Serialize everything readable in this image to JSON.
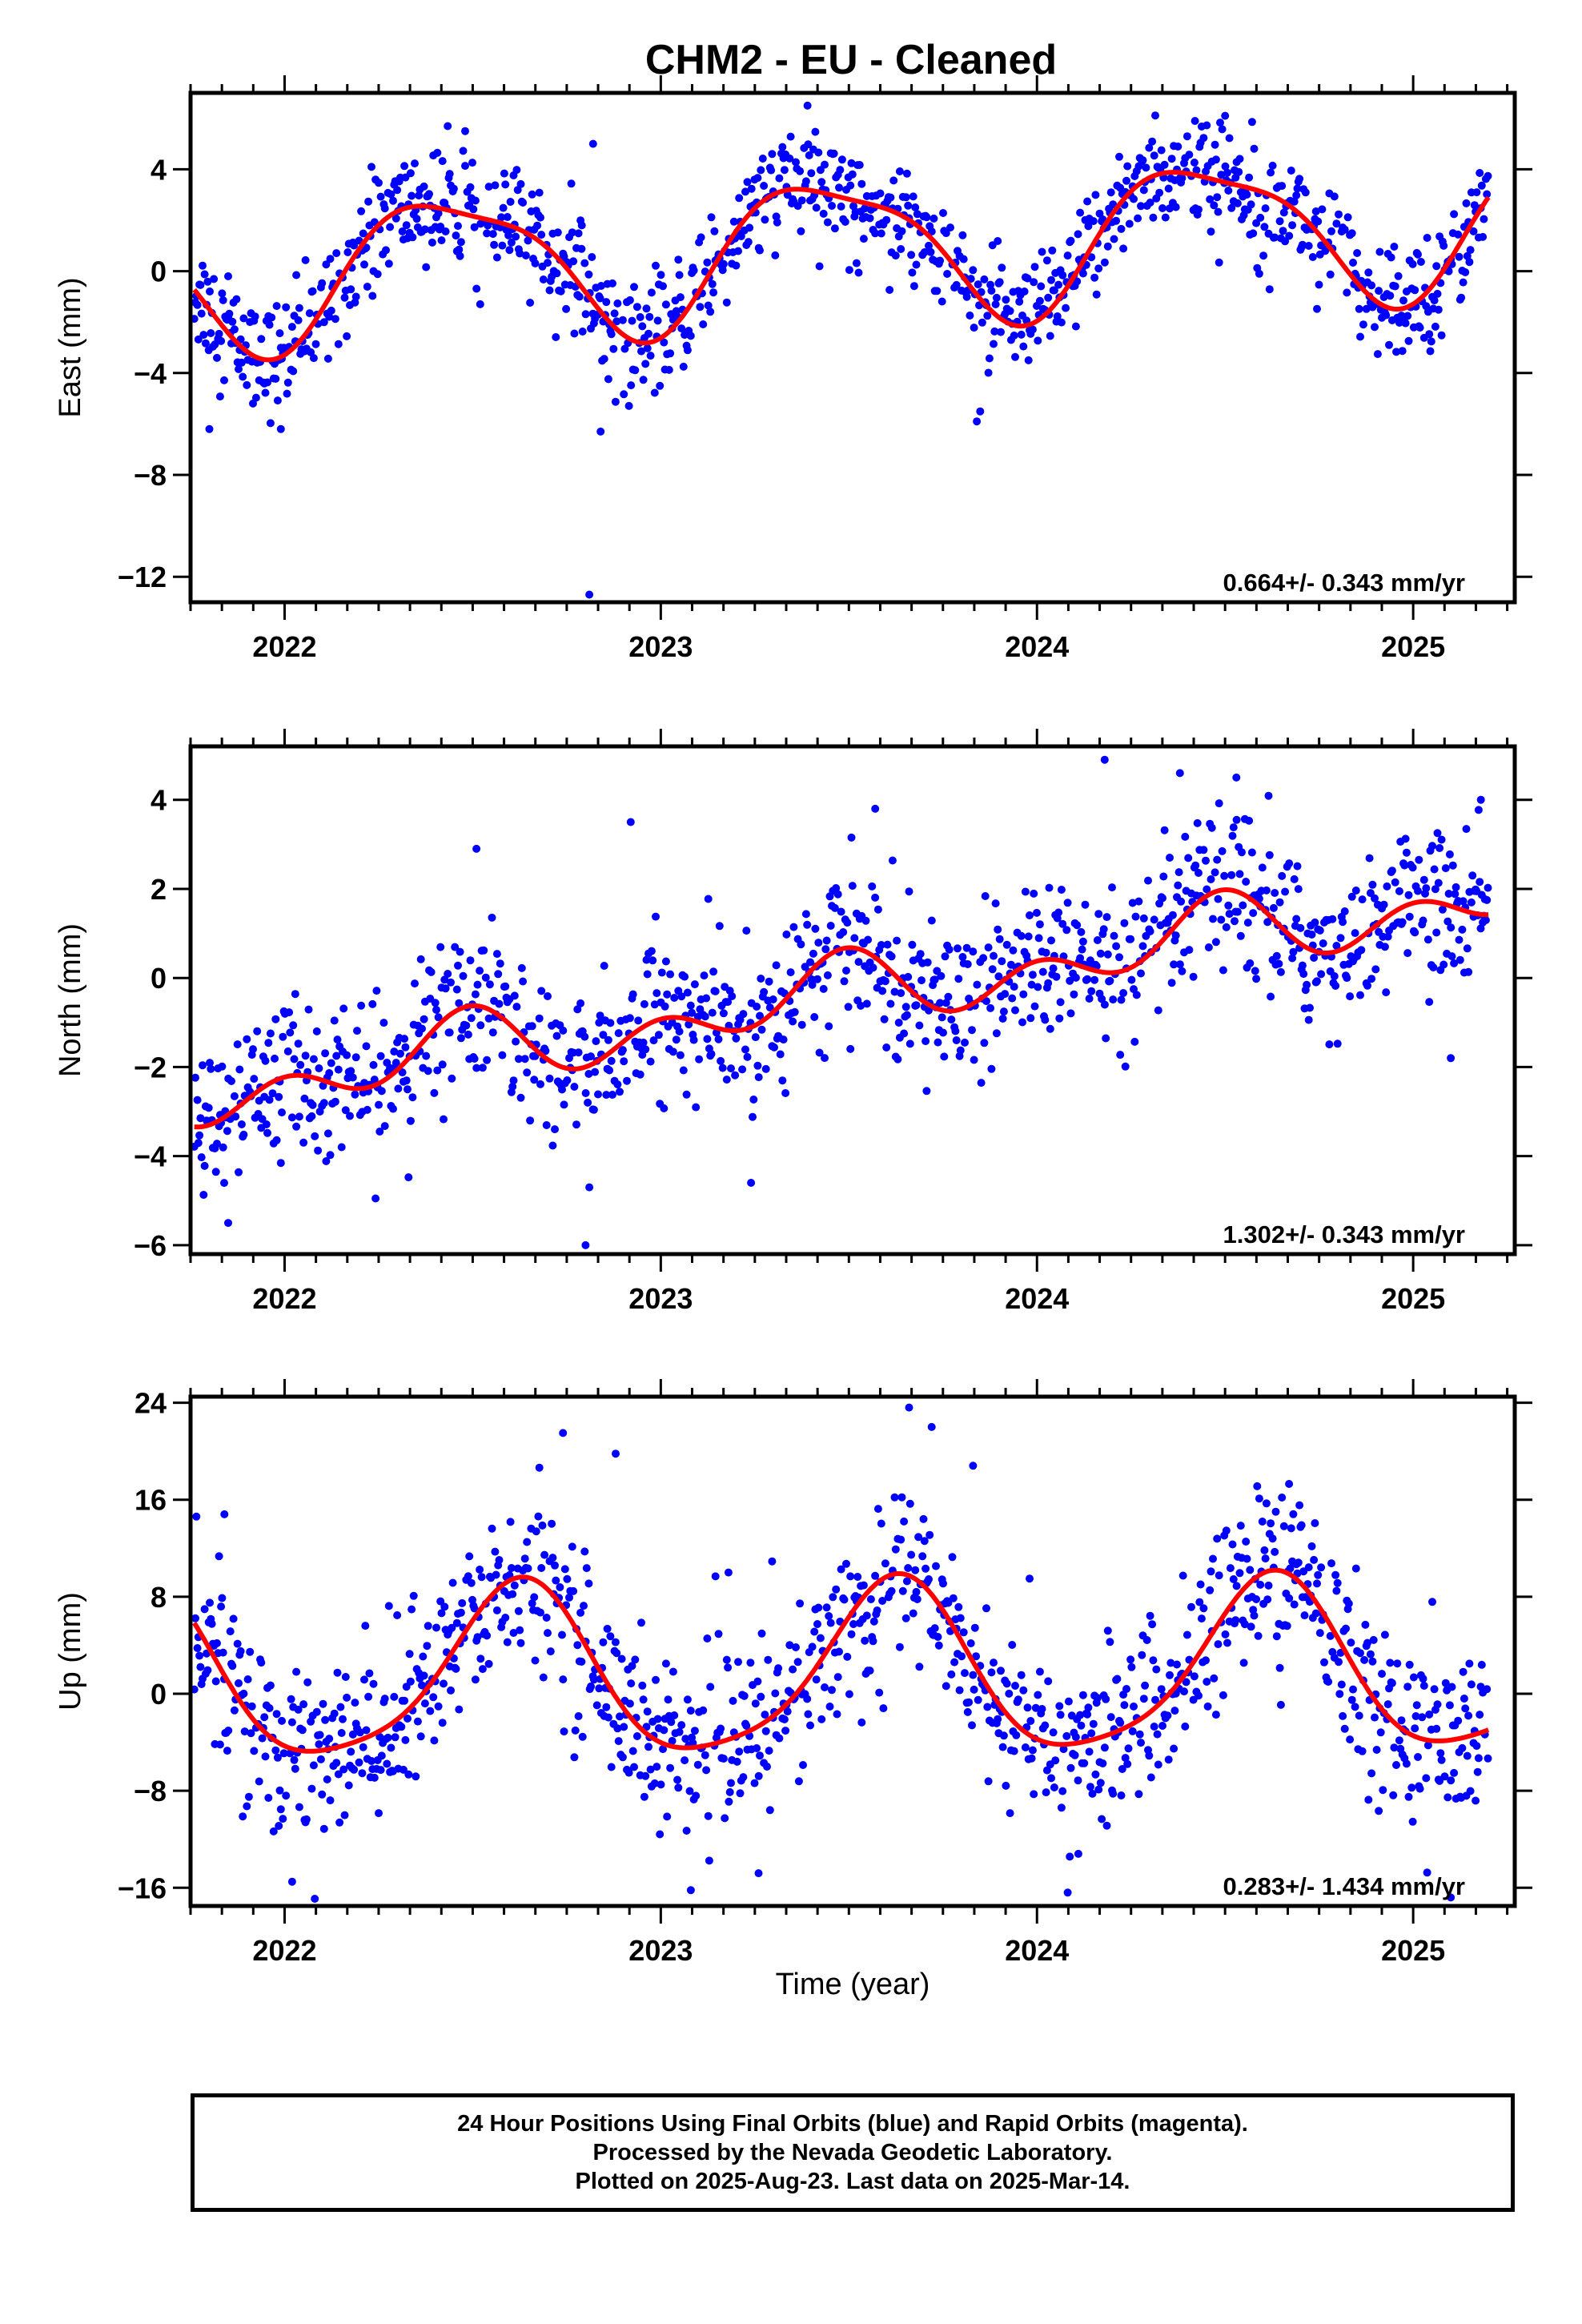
{
  "chart_data": {
    "title": "CHM2  - EU - Cleaned",
    "type": "scatter",
    "xlabel": "Time (year)",
    "xlim": [
      2021.75,
      2025.27
    ],
    "x_ticks": [
      "2022",
      "2023",
      "2024",
      "2025"
    ],
    "series_colors": {
      "final_orbits": "#0000ff",
      "rapid_orbits": "#ff00ff",
      "model_fit": "#ff0000"
    },
    "panels": [
      {
        "ylabel": "East (mm)",
        "ylim": [
          -13,
          7
        ],
        "y_ticks": [
          "−12",
          "−8",
          "−4",
          "0",
          "4"
        ],
        "rate_label": "0.664+/- 0.343 mm/yr",
        "model": {
          "offset": -0.05,
          "rate": 0.664,
          "annual_amp": 2.75,
          "annual_peak": 2022.44,
          "semi_amp": 0.7,
          "semi_peak": 2022.23
        },
        "scatter": 1.1,
        "x_range": [
          2021.76,
          2025.2
        ],
        "outliers": [
          {
            "x": 2022.81,
            "y": -12.7
          },
          {
            "x": 2022.82,
            "y": 5.0
          },
          {
            "x": 2023.39,
            "y": 6.5
          },
          {
            "x": 2022.48,
            "y": 5.5
          },
          {
            "x": 2024.42,
            "y": 5.9
          },
          {
            "x": 2024.5,
            "y": 6.1
          },
          {
            "x": 2021.85,
            "y": -0.2
          },
          {
            "x": 2021.8,
            "y": -6.2
          },
          {
            "x": 2021.99,
            "y": -6.2
          },
          {
            "x": 2022.84,
            "y": -6.3
          },
          {
            "x": 2023.84,
            "y": -5.9
          },
          {
            "x": 2022.52,
            "y": -1.3
          },
          {
            "x": 2022.79,
            "y": 1.8
          }
        ]
      },
      {
        "ylabel": "North (mm)",
        "ylim": [
          -6.2,
          5.2
        ],
        "y_ticks": [
          "−6",
          "−4",
          "−2",
          "0",
          "2",
          "4"
        ],
        "rate_label": "1.302+/- 0.343 mm/yr",
        "model": {
          "offset": -2.3,
          "rate": 1.302,
          "annual_amp": 0.5,
          "annual_peak": 2022.45,
          "semi_amp": 0.55,
          "semi_peak": 2022.0
        },
        "scatter": 0.85,
        "x_range": [
          2021.76,
          2025.2
        ],
        "outliers": [
          {
            "x": 2022.8,
            "y": -6.0
          },
          {
            "x": 2022.81,
            "y": -4.7
          },
          {
            "x": 2021.85,
            "y": -5.5
          },
          {
            "x": 2022.92,
            "y": 3.5
          },
          {
            "x": 2024.18,
            "y": 4.9
          },
          {
            "x": 2024.38,
            "y": 4.6
          },
          {
            "x": 2024.53,
            "y": 4.5
          },
          {
            "x": 2025.1,
            "y": -1.8
          },
          {
            "x": 2025.18,
            "y": 4.0
          },
          {
            "x": 2023.24,
            "y": -4.6
          },
          {
            "x": 2022.51,
            "y": 2.9
          },
          {
            "x": 2023.57,
            "y": 3.8
          }
        ]
      },
      {
        "ylabel": "Up (mm)",
        "ylim": [
          -17.5,
          24.5
        ],
        "y_ticks": [
          "−16",
          "−8",
          "0",
          "8",
          "16",
          "24"
        ],
        "rate_label": "0.283+/- 1.434 mm/yr",
        "model": {
          "offset": 1.2,
          "rate": 0.283,
          "annual_amp": 7.0,
          "annual_peak": 2022.62,
          "semi_amp": 1.3,
          "semi_peak": 2022.15
        },
        "scatter": 3.6,
        "x_range": [
          2021.76,
          2025.2
        ],
        "outliers": [
          {
            "x": 2023.66,
            "y": 23.6
          },
          {
            "x": 2023.72,
            "y": 22.0
          },
          {
            "x": 2022.74,
            "y": 21.5
          },
          {
            "x": 2022.88,
            "y": 19.8
          },
          {
            "x": 2023.83,
            "y": 18.8
          },
          {
            "x": 2024.67,
            "y": 17.3
          },
          {
            "x": 2021.84,
            "y": 14.8
          },
          {
            "x": 2023.08,
            "y": -16.2
          },
          {
            "x": 2022.02,
            "y": -15.5
          },
          {
            "x": 2025.1,
            "y": -16.8
          },
          {
            "x": 2023.26,
            "y": -14.8
          },
          {
            "x": 2023.18,
            "y": 10.0
          },
          {
            "x": 2024.11,
            "y": -13.2
          }
        ]
      }
    ]
  },
  "footer": {
    "line1": "24 Hour Positions Using Final Orbits (blue) and Rapid Orbits (magenta).",
    "line2": "Processed by the Nevada Geodetic Laboratory.",
    "line3": "Plotted on 2025-Aug-23. Last data on 2025-Mar-14."
  }
}
